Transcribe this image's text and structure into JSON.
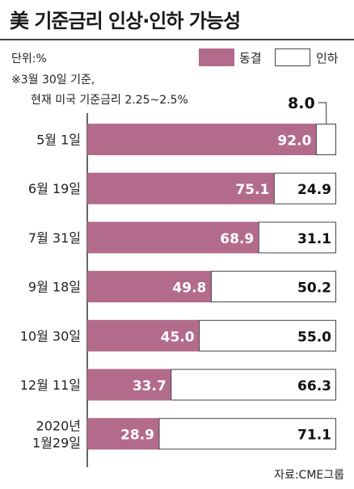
{
  "title": "美 기준금리 인상·인하 가능성",
  "unit_label": "단위:%",
  "note_line1": "※3월 30일 기준,",
  "note_line2": "현재 미국 기준금리 2.25~2.5%",
  "source": "자료:CME그룹",
  "colors": {
    "hold": "#b36b8c",
    "cut": "#ffffff",
    "border": "#444444"
  },
  "chart_data": {
    "type": "bar",
    "orientation": "horizontal",
    "stacked": true,
    "title": "美 기준금리 인상·인하 가능성",
    "unit": "%",
    "legend": [
      "동결",
      "인하"
    ],
    "legend_position": "top-right",
    "xlim": [
      0,
      100
    ],
    "categories": [
      [
        "5월 1일"
      ],
      [
        "6월 19일"
      ],
      [
        "7월 31일"
      ],
      [
        "9월 18일"
      ],
      [
        "10월 30일"
      ],
      [
        "12월 11일"
      ],
      [
        "2020년",
        "1월29일"
      ]
    ],
    "series": [
      {
        "name": "동결",
        "values": [
          92.0,
          75.1,
          68.9,
          49.8,
          45.0,
          33.7,
          28.9
        ]
      },
      {
        "name": "인하",
        "values": [
          8.0,
          24.9,
          31.1,
          50.2,
          55.0,
          66.3,
          71.1
        ]
      }
    ],
    "value_labels": {
      "동결": [
        "92.0",
        "75.1",
        "68.9",
        "49.8",
        "45.0",
        "33.7",
        "28.9"
      ],
      "인하": [
        "8.0",
        "24.9",
        "31.1",
        "50.2",
        "55.0",
        "66.3",
        "71.1"
      ]
    }
  }
}
